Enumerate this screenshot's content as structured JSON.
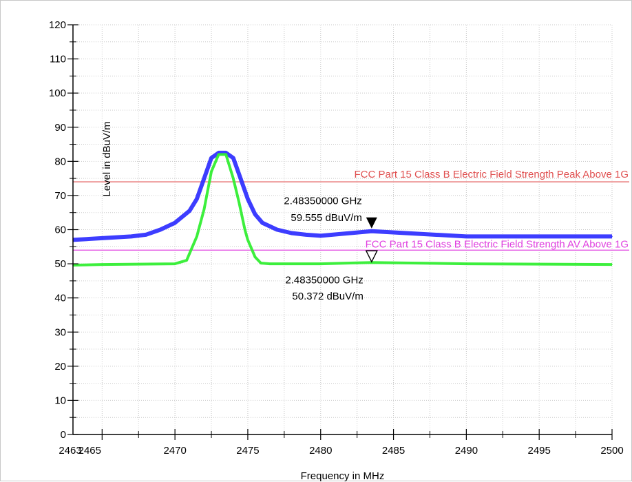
{
  "chart_data": {
    "type": "line",
    "title": "",
    "xlabel": "Frequency in MHz",
    "ylabel": "Level in dBuV/m",
    "xlim": [
      2463,
      2500
    ],
    "ylim": [
      0,
      120
    ],
    "grid": true,
    "x_ticks": [
      2463,
      2465,
      2470,
      2475,
      2480,
      2485,
      2490,
      2495,
      2500
    ],
    "x_tick_labels": [
      "2463",
      "2465",
      "2470",
      "2475",
      "2480",
      "2485",
      "2490",
      "2495",
      "2500"
    ],
    "y_ticks": [
      0,
      10,
      20,
      30,
      40,
      50,
      60,
      70,
      80,
      90,
      100,
      110,
      120
    ],
    "series": [
      {
        "color": "#3333ff",
        "x": [
          2463,
          2465,
          2467,
          2468,
          2469,
          2470,
          2471,
          2471.5,
          2472,
          2472.5,
          2473,
          2473.5,
          2474,
          2474.5,
          2475,
          2475.5,
          2476,
          2477,
          2478,
          2479,
          2480,
          2483.5,
          2490,
          2500
        ],
        "values": [
          57,
          57.5,
          58,
          58.5,
          60,
          62,
          65.5,
          69,
          75,
          81,
          82.5,
          82.5,
          81,
          75,
          69,
          64.5,
          62,
          60,
          59,
          58.5,
          58.2,
          59.555,
          58,
          58
        ]
      },
      {
        "color": "#33ee33",
        "x": [
          2463,
          2465,
          2470,
          2470.8,
          2471,
          2471.5,
          2472,
          2472.5,
          2473,
          2473.5,
          2474,
          2474.4,
          2474.8,
          2475,
          2475.5,
          2475.9,
          2476.5,
          2480,
          2483.5,
          2490,
          2500
        ],
        "values": [
          49.6,
          49.8,
          50,
          51,
          53,
          58,
          66,
          77,
          82,
          82,
          75,
          68,
          60,
          57,
          52,
          50.2,
          50,
          50,
          50.372,
          50,
          49.8
        ]
      }
    ],
    "limit_lines": [
      {
        "label": "FCC Part 15 Class B Electric Field Strength Peak Above 1G",
        "value": 74,
        "color": "#e05050"
      },
      {
        "label": "FCC Part 15 Class B Electric Field Strength AV Above 1G",
        "value": 54,
        "color": "#e040e0"
      }
    ],
    "markers": [
      {
        "x": 2483.5,
        "y": 59.555,
        "freq": "2.48350000 GHz",
        "level": "59.555 dBuV/m",
        "filled": true
      },
      {
        "x": 2483.5,
        "y": 50.372,
        "freq": "2.48350000 GHz",
        "level": "50.372 dBuV/m",
        "filled": false
      }
    ]
  }
}
